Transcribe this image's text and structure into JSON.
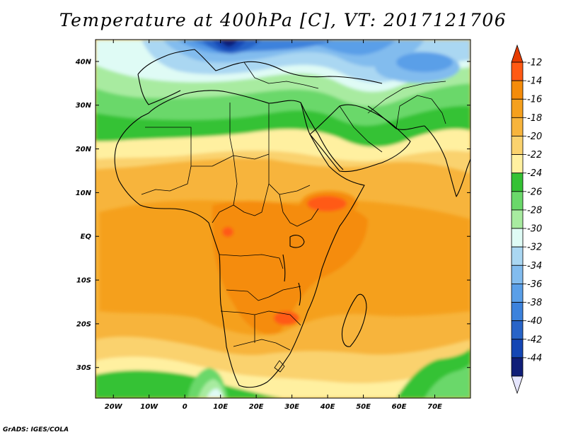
{
  "title": "Temperature at 400hPa [C], VT: 2017121706",
  "credit": "GrADS: IGES/COLA",
  "map": {
    "lon_range": [
      -25,
      80
    ],
    "lat_range": [
      -37,
      45
    ],
    "lat_ticks": [
      {
        "value": 40,
        "label": "40N"
      },
      {
        "value": 30,
        "label": "30N"
      },
      {
        "value": 20,
        "label": "20N"
      },
      {
        "value": 10,
        "label": "10N"
      },
      {
        "value": 0,
        "label": "EQ"
      },
      {
        "value": -10,
        "label": "10S"
      },
      {
        "value": -20,
        "label": "20S"
      },
      {
        "value": -30,
        "label": "30S"
      }
    ],
    "lon_ticks": [
      {
        "value": -20,
        "label": "20W"
      },
      {
        "value": -10,
        "label": "10W"
      },
      {
        "value": 0,
        "label": "0"
      },
      {
        "value": 10,
        "label": "10E"
      },
      {
        "value": 20,
        "label": "20E"
      },
      {
        "value": 30,
        "label": "30E"
      },
      {
        "value": 40,
        "label": "40E"
      },
      {
        "value": 50,
        "label": "50E"
      },
      {
        "value": 60,
        "label": "60E"
      },
      {
        "value": 70,
        "label": "70E"
      }
    ]
  },
  "colorbar": {
    "levels": [
      {
        "label": "-12",
        "color": "#ff5a14"
      },
      {
        "label": "-14",
        "color": "#f58c0a"
      },
      {
        "label": "-16",
        "color": "#f5a01e"
      },
      {
        "label": "-18",
        "color": "#f7b43c"
      },
      {
        "label": "-20",
        "color": "#fad26e"
      },
      {
        "label": "-22",
        "color": "#fff0a0"
      },
      {
        "label": "-24",
        "color": "#35c235"
      },
      {
        "label": "-26",
        "color": "#6ad86a"
      },
      {
        "label": "-28",
        "color": "#a8eba0"
      },
      {
        "label": "-30",
        "color": "#dffbf5"
      },
      {
        "label": "-32",
        "color": "#aad7f2"
      },
      {
        "label": "-34",
        "color": "#82bcee"
      },
      {
        "label": "-36",
        "color": "#5a9fe8"
      },
      {
        "label": "-38",
        "color": "#3c82dc"
      },
      {
        "label": "-40",
        "color": "#2864c8"
      },
      {
        "label": "-42",
        "color": "#1446b4"
      },
      {
        "label": "-44",
        "color": "#101e78"
      }
    ],
    "top_arrow_color": "#e63c00",
    "bottom_arrow_color": "#e6e6ff"
  }
}
